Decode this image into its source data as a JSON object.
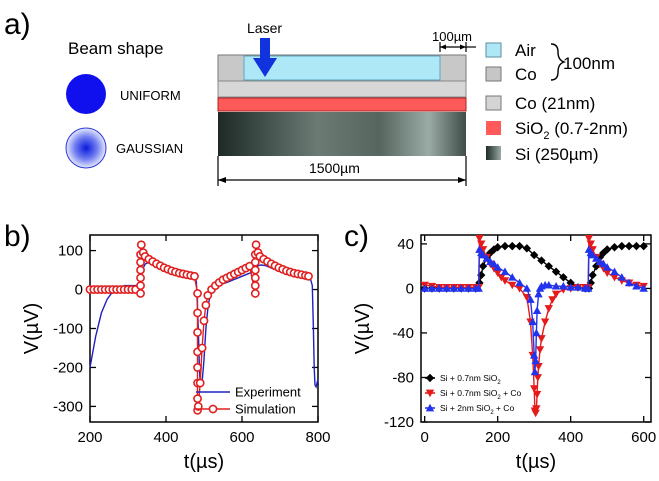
{
  "panel_a": {
    "label": "a)",
    "beam_title": "Beam shape",
    "uniform": "UNIFORM",
    "gaussian": "GAUSSIAN",
    "laser": "Laser",
    "scale_small": "100µm",
    "scale_big": "1500µm",
    "legend": [
      {
        "text": "Air",
        "color": "#aee7f6"
      },
      {
        "text": "Co",
        "color": "#c6c6c6"
      },
      {
        "text": "Co (21nm)",
        "color": "#d4d4d4"
      },
      {
        "text": "SiO",
        "sub": "2",
        "tail": " (0.7-2nm)",
        "color": "#ff5a5a"
      },
      {
        "text": "Si (250µm)",
        "color": "#4f5f58"
      }
    ],
    "brace_label": "100nm",
    "colors": {
      "uniform": "#1010ee",
      "arrow": "#1133dd",
      "air": "#aee7f6",
      "sio2": "#ff5a5a"
    }
  },
  "panel_b": {
    "label": "b)"
  },
  "panel_c": {
    "label": "c)"
  },
  "chart_data": [
    {
      "type": "line",
      "xlabel": "t(µs)",
      "ylabel": "V(µV)",
      "xlim": [
        200,
        800
      ],
      "ylim": [
        -340,
        140
      ],
      "xticks": [
        200,
        400,
        600,
        800
      ],
      "yticks": [
        100,
        0,
        -100,
        -200,
        -300
      ],
      "legend_position": "bottom-right",
      "series": [
        {
          "name": "Experiment",
          "color": "#2020c0",
          "marker": "none",
          "x": [
            200,
            215,
            230,
            245,
            260,
            275,
            290,
            300,
            310,
            320,
            330,
            335,
            340,
            345,
            350,
            360,
            370,
            380,
            390,
            400,
            410,
            420,
            430,
            440,
            450,
            460,
            470,
            475,
            480,
            485,
            488,
            490,
            492,
            495,
            500,
            505,
            510,
            515,
            520,
            530,
            540,
            550,
            560,
            570,
            580,
            590,
            600,
            610,
            620,
            630,
            635,
            640,
            645,
            650,
            660,
            670,
            680,
            690,
            700,
            710,
            720,
            730,
            740,
            750,
            760,
            770,
            780,
            785,
            788,
            790,
            792,
            795,
            800
          ],
          "y": [
            -200,
            -120,
            -60,
            -25,
            -5,
            5,
            10,
            10,
            10,
            10,
            12,
            30,
            55,
            65,
            68,
            68,
            66,
            63,
            60,
            57,
            54,
            51,
            48,
            46,
            44,
            42,
            40,
            38,
            20,
            -100,
            -200,
            -240,
            -245,
            -238,
            -180,
            -100,
            -50,
            -20,
            -5,
            5,
            10,
            15,
            18,
            22,
            26,
            30,
            34,
            38,
            42,
            45,
            55,
            60,
            62,
            63,
            62,
            58,
            54,
            50,
            47,
            44,
            41,
            38,
            36,
            34,
            32,
            31,
            28,
            10,
            -100,
            -200,
            -245,
            -250,
            -230
          ]
        },
        {
          "name": "Simulation",
          "color": "#e02020",
          "marker": "circle",
          "x": [
            200,
            210,
            220,
            230,
            240,
            250,
            260,
            270,
            280,
            290,
            300,
            310,
            320,
            333,
            333,
            333,
            333,
            333,
            333,
            335,
            340,
            345,
            355,
            365,
            375,
            385,
            395,
            405,
            415,
            425,
            435,
            445,
            455,
            465,
            475,
            483,
            483,
            483,
            483,
            483,
            483,
            483,
            483,
            485,
            490,
            495,
            500,
            505,
            510,
            520,
            530,
            540,
            550,
            560,
            570,
            580,
            590,
            600,
            610,
            620,
            635,
            635,
            635,
            635,
            635,
            635,
            637,
            642,
            647,
            657,
            667,
            677,
            687,
            697,
            707,
            717,
            727,
            737,
            747,
            757,
            767,
            775
          ],
          "y": [
            0,
            0,
            0,
            0,
            0,
            0,
            0,
            0,
            0,
            0,
            0,
            0,
            0,
            -10,
            10,
            30,
            50,
            70,
            90,
            115,
            95,
            85,
            78,
            72,
            66,
            61,
            56,
            52,
            48,
            45,
            42,
            40,
            38,
            36,
            34,
            -10,
            -60,
            -110,
            -160,
            -200,
            -240,
            -280,
            -310,
            -300,
            -240,
            -150,
            -80,
            -40,
            -15,
            0,
            10,
            18,
            25,
            30,
            35,
            40,
            45,
            50,
            55,
            60,
            -10,
            10,
            30,
            50,
            70,
            90,
            115,
            95,
            85,
            78,
            72,
            66,
            61,
            56,
            52,
            48,
            45,
            42,
            40,
            38,
            36,
            34
          ]
        }
      ]
    },
    {
      "type": "line",
      "xlabel": "t(µs)",
      "ylabel": "V(µV)",
      "xlim": [
        -10,
        620
      ],
      "ylim": [
        -120,
        48
      ],
      "xticks": [
        0,
        200,
        400,
        600
      ],
      "yticks": [
        40,
        0,
        -40,
        -80,
        -120
      ],
      "legend_position": "bottom-left",
      "series": [
        {
          "name": "Si + 0.7nm SiO",
          "name_sub": "2",
          "name_tail": "",
          "color": "#000000",
          "marker": "diamond",
          "x": [
            0,
            20,
            40,
            60,
            80,
            100,
            120,
            140,
            150,
            155,
            160,
            170,
            180,
            190,
            200,
            220,
            240,
            260,
            280,
            300,
            320,
            340,
            360,
            380,
            400,
            420,
            440,
            450,
            455,
            460,
            470,
            480,
            490,
            500,
            520,
            540,
            560,
            580,
            600
          ],
          "y": [
            0,
            0,
            0,
            0,
            0,
            0,
            0,
            0,
            5,
            12,
            20,
            28,
            32,
            35,
            37,
            38,
            38,
            38,
            36,
            30,
            25,
            20,
            15,
            10,
            5,
            1,
            0,
            0,
            5,
            12,
            20,
            28,
            32,
            35,
            37,
            38,
            38,
            38,
            38
          ]
        },
        {
          "name": "Si + 0.7nm SiO",
          "name_sub": "2",
          "name_tail": " + Co",
          "color": "#e51a1a",
          "marker": "triangle-down",
          "x": [
            0,
            20,
            40,
            60,
            80,
            100,
            120,
            140,
            148,
            150,
            155,
            160,
            170,
            180,
            190,
            200,
            210,
            220,
            240,
            260,
            280,
            290,
            296,
            300,
            302,
            304,
            306,
            308,
            310,
            312,
            316,
            320,
            330,
            340,
            350,
            360,
            380,
            400,
            420,
            440,
            448,
            450,
            455,
            460,
            470,
            480,
            490,
            500,
            520,
            540,
            560,
            580,
            600
          ],
          "y": [
            3,
            2,
            1,
            1,
            1,
            1,
            1,
            1,
            1,
            45,
            40,
            35,
            28,
            22,
            18,
            14,
            10,
            7,
            3,
            0,
            -8,
            -30,
            -60,
            -90,
            -110,
            -112,
            -108,
            -95,
            -80,
            -70,
            -55,
            -45,
            -30,
            -18,
            -10,
            -5,
            -1,
            0,
            1,
            1,
            1,
            45,
            40,
            35,
            28,
            22,
            18,
            14,
            10,
            7,
            5,
            3,
            2
          ]
        },
        {
          "name": "Si + 2nm SiO",
          "name_sub": "2",
          "name_tail": " + Co",
          "color": "#2233ee",
          "marker": "triangle-up",
          "x": [
            0,
            20,
            40,
            60,
            80,
            100,
            120,
            140,
            148,
            150,
            155,
            160,
            170,
            180,
            190,
            200,
            220,
            240,
            260,
            280,
            290,
            296,
            300,
            302,
            304,
            306,
            308,
            312,
            316,
            320,
            330,
            340,
            360,
            380,
            400,
            420,
            440,
            448,
            450,
            455,
            460,
            470,
            480,
            490,
            500,
            520,
            540,
            560,
            580,
            600
          ],
          "y": [
            0,
            0,
            0,
            0,
            0,
            0,
            0,
            0,
            0,
            35,
            32,
            30,
            27,
            24,
            22,
            19,
            15,
            10,
            5,
            0,
            -10,
            -30,
            -60,
            -75,
            -65,
            -40,
            -20,
            -5,
            0,
            2,
            3,
            3,
            2,
            2,
            1,
            1,
            0,
            0,
            35,
            32,
            30,
            27,
            24,
            22,
            19,
            15,
            10,
            5,
            2,
            0
          ]
        }
      ]
    }
  ]
}
